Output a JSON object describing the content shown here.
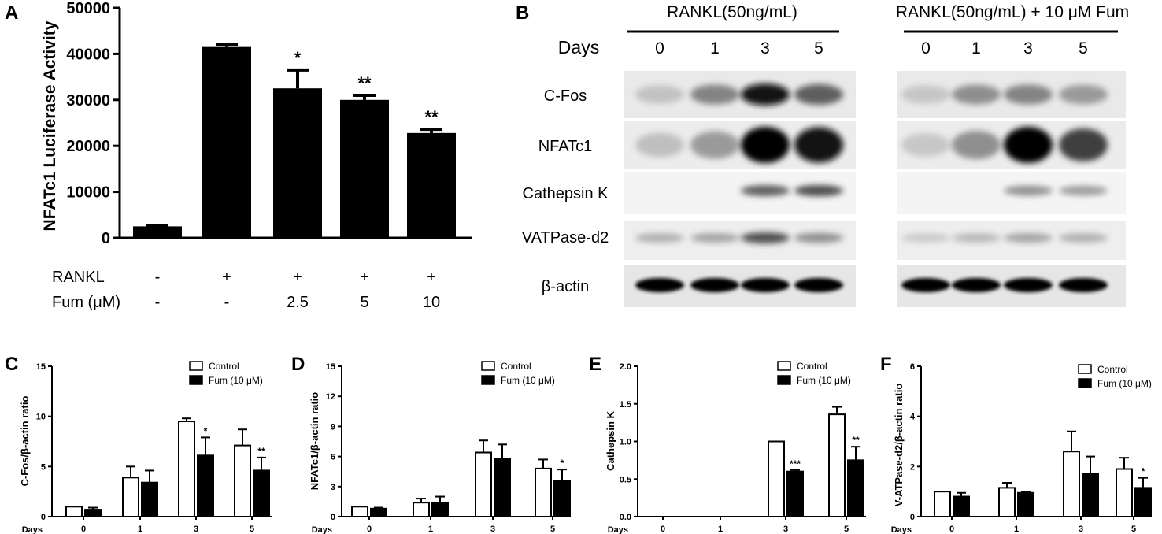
{
  "panels": {
    "A": "A",
    "B": "B",
    "C": "C",
    "D": "D",
    "E": "E",
    "F": "F"
  },
  "blot": {
    "group1": "RANKL(50ng/mL)",
    "group2": "RANKL(50ng/mL) + 10 μM Fum",
    "days_label": "Days",
    "days": [
      "0",
      "1",
      "3",
      "5",
      "0",
      "1",
      "3",
      "5"
    ],
    "rows": [
      "C-Fos",
      "NFATc1",
      "Cathepsin K",
      "VATPase-d2",
      "β-actin"
    ]
  },
  "chart_data": [
    {
      "panel": "A",
      "type": "bar",
      "ylabel": "NFATc1 Luciferase Activity",
      "ylim": [
        0,
        50000
      ],
      "yticks": [
        "0",
        "10000",
        "20000",
        "30000",
        "40000",
        "50000"
      ],
      "values": [
        2500,
        41500,
        32500,
        30000,
        22800
      ],
      "errors": [
        200,
        500,
        4000,
        1000,
        800
      ],
      "significance": [
        "",
        "",
        "*",
        "**",
        "**"
      ],
      "row_labels": [
        "RANKL",
        "Fum (μM)"
      ],
      "rankl": [
        "-",
        "+",
        "+",
        "+",
        "+"
      ],
      "fum": [
        "-",
        "-",
        "2.5",
        "5",
        "10"
      ]
    },
    {
      "panel": "C",
      "type": "bar",
      "ylabel": "C-Fos/β-actin ratio",
      "xlabel": "Days",
      "categories": [
        "0",
        "1",
        "3",
        "5"
      ],
      "ylim": [
        0,
        15
      ],
      "yticks": [
        "0",
        "5",
        "10",
        "15"
      ],
      "series": [
        {
          "name": "Control",
          "values": [
            1.0,
            3.9,
            9.5,
            7.1
          ],
          "errors": [
            0,
            1.1,
            0.3,
            1.6
          ]
        },
        {
          "name": "Fum (10 μM)",
          "values": [
            0.7,
            3.4,
            6.1,
            4.6
          ],
          "errors": [
            0.2,
            1.2,
            1.8,
            1.3
          ]
        }
      ],
      "significance": [
        "",
        "",
        "*",
        "**"
      ]
    },
    {
      "panel": "D",
      "type": "bar",
      "ylabel": "NFATc1/β-actin ratio",
      "xlabel": "Days",
      "categories": [
        "0",
        "1",
        "3",
        "5"
      ],
      "ylim": [
        0,
        15
      ],
      "yticks": [
        "0",
        "3",
        "6",
        "9",
        "12",
        "15"
      ],
      "series": [
        {
          "name": "Control",
          "values": [
            1.0,
            1.4,
            6.4,
            4.8
          ],
          "errors": [
            0,
            0.4,
            1.2,
            0.9
          ]
        },
        {
          "name": "Fum (10 μM)",
          "values": [
            0.8,
            1.4,
            5.8,
            3.6
          ],
          "errors": [
            0.1,
            0.6,
            1.4,
            1.1
          ]
        }
      ],
      "significance": [
        "",
        "",
        "",
        "*"
      ]
    },
    {
      "panel": "E",
      "type": "bar",
      "ylabel": "Cathepsin K",
      "xlabel": "Days",
      "categories": [
        "0",
        "1",
        "3",
        "5"
      ],
      "ylim": [
        0,
        2.0
      ],
      "yticks": [
        "0.0",
        "0.5",
        "1.0",
        "1.5",
        "2.0"
      ],
      "series": [
        {
          "name": "Control",
          "values": [
            0,
            0,
            1.0,
            1.36
          ],
          "errors": [
            0,
            0,
            0,
            0.1
          ]
        },
        {
          "name": "Fum (10 μM)",
          "values": [
            0,
            0,
            0.6,
            0.75
          ],
          "errors": [
            0,
            0,
            0.02,
            0.18
          ]
        }
      ],
      "significance": [
        "",
        "",
        "***",
        "**"
      ]
    },
    {
      "panel": "F",
      "type": "bar",
      "ylabel": "V-ATPase-d2/β-actin ratio",
      "xlabel": "Days",
      "categories": [
        "0",
        "1",
        "3",
        "5"
      ],
      "ylim": [
        0,
        6
      ],
      "yticks": [
        "0",
        "2",
        "4",
        "6"
      ],
      "series": [
        {
          "name": "Control",
          "values": [
            1.0,
            1.15,
            2.6,
            1.9
          ],
          "errors": [
            0,
            0.2,
            0.8,
            0.45
          ]
        },
        {
          "name": "Fum (10 μM)",
          "values": [
            0.8,
            0.95,
            1.7,
            1.15
          ],
          "errors": [
            0.15,
            0.05,
            0.7,
            0.4
          ]
        }
      ],
      "significance": [
        "",
        "",
        "",
        "*"
      ]
    }
  ]
}
